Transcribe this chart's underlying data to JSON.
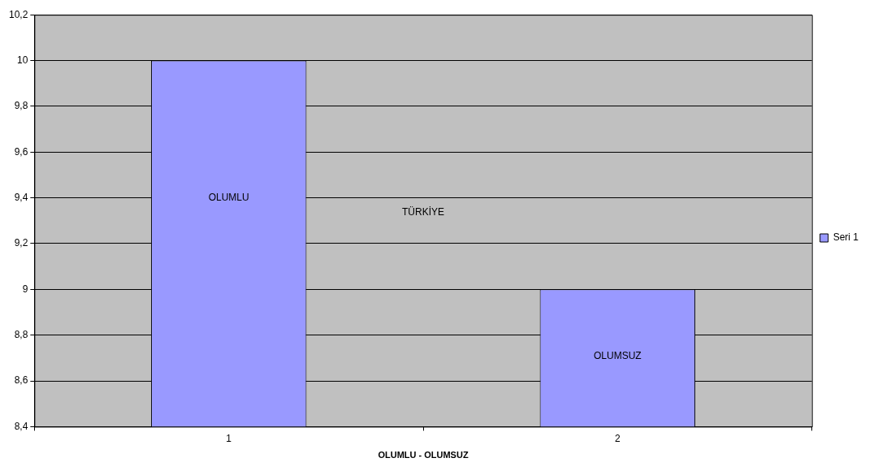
{
  "chart_data": {
    "type": "bar",
    "xlabel": "OLUMLU - OLUMSUZ",
    "categories": [
      "1",
      "2"
    ],
    "series": [
      {
        "name": "Seri 1",
        "color": "#9999ff",
        "values": [
          10,
          9
        ]
      }
    ],
    "ylim": [
      8.4,
      10.2
    ],
    "yticks": [
      {
        "value": 8.4,
        "label": "8,4"
      },
      {
        "value": 8.6,
        "label": "8,6"
      },
      {
        "value": 8.8,
        "label": "8,8"
      },
      9,
      {
        "value": 9.2,
        "label": "9,2"
      },
      {
        "value": 9.4,
        "label": "9,4"
      },
      {
        "value": 9.6,
        "label": "9,6"
      },
      {
        "value": 9.8,
        "label": "9,8"
      },
      10,
      {
        "value": 10.2,
        "label": "10,2"
      }
    ],
    "grid": "y",
    "legend": "right",
    "annotations": [
      "OLUMLU",
      "TÜRKİYE",
      "OLUMSUZ"
    ]
  }
}
